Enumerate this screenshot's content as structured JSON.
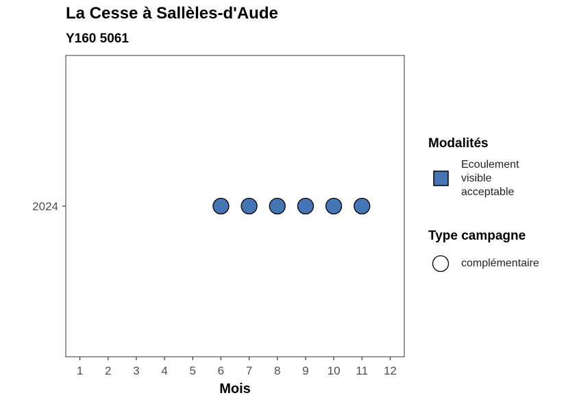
{
  "chart_data": {
    "type": "scatter",
    "title": "La Cesse à Sallèles-d'Aude",
    "subtitle": "Y160 5061",
    "xlabel": "Mois",
    "ylabel": "",
    "x_ticks": [
      "1",
      "2",
      "3",
      "4",
      "5",
      "6",
      "7",
      "8",
      "9",
      "10",
      "11",
      "12"
    ],
    "xlim": [
      0.5,
      12.5
    ],
    "y_ticks": [
      "2024"
    ],
    "grid": false,
    "legend_position": "right",
    "series": [
      {
        "name": "Ecoulement visible acceptable",
        "campaign": "complémentaire",
        "color": "#4575b4",
        "points": [
          {
            "x": 6,
            "y": "2024"
          },
          {
            "x": 7,
            "y": "2024"
          },
          {
            "x": 8,
            "y": "2024"
          },
          {
            "x": 9,
            "y": "2024"
          },
          {
            "x": 10,
            "y": "2024"
          },
          {
            "x": 11,
            "y": "2024"
          }
        ]
      }
    ]
  },
  "legend": {
    "modalites_title": "Modalités",
    "modalites_items": [
      {
        "label_lines": [
          "Ecoulement",
          "visible",
          "acceptable"
        ],
        "color": "#4575b4"
      }
    ],
    "campagne_title": "Type campagne",
    "campagne_items": [
      {
        "label": "complémentaire"
      }
    ]
  }
}
